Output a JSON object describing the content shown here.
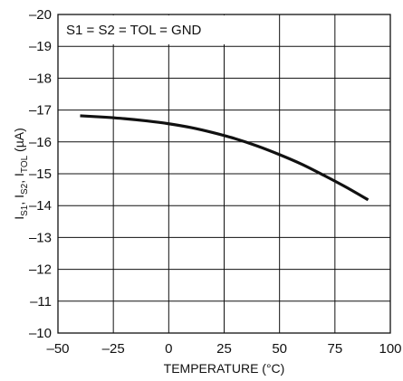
{
  "chart_data": {
    "type": "line",
    "title": "",
    "annotation": "S1 = S2 = TOL = GND",
    "xlabel": "TEMPERATURE (°C)",
    "ylabel": {
      "prefix": "I",
      "parts": [
        {
          "main": "I",
          "sub": "S1"
        },
        {
          "main": "I",
          "sub": "S2"
        },
        {
          "main": "I",
          "sub": "TOL"
        }
      ],
      "unit": "(µA)"
    },
    "xlim": [
      -50,
      100
    ],
    "ylim": [
      -10,
      -20
    ],
    "y_axis_inverted": true,
    "x_ticks": [
      -50,
      -25,
      0,
      25,
      50,
      75,
      100
    ],
    "x_tick_labels": [
      "–50",
      "–25",
      "0",
      "25",
      "50",
      "75",
      "100"
    ],
    "y_ticks": [
      -20,
      -19,
      -18,
      -17,
      -16,
      -15,
      -14,
      -13,
      -12,
      -11,
      -10
    ],
    "y_tick_labels": [
      "–20",
      "–19",
      "–18",
      "–17",
      "–16",
      "–15",
      "–14",
      "–13",
      "–12",
      "–11",
      "–10"
    ],
    "grid": true,
    "series": [
      {
        "x": [
          -40,
          -30,
          -20,
          -10,
          0,
          10,
          20,
          30,
          40,
          50,
          60,
          70,
          80,
          90
        ],
        "y": [
          -16.82,
          -16.78,
          -16.73,
          -16.66,
          -16.57,
          -16.45,
          -16.29,
          -16.1,
          -15.87,
          -15.6,
          -15.3,
          -14.95,
          -14.58,
          -14.18
        ],
        "color": "#111111"
      }
    ]
  }
}
